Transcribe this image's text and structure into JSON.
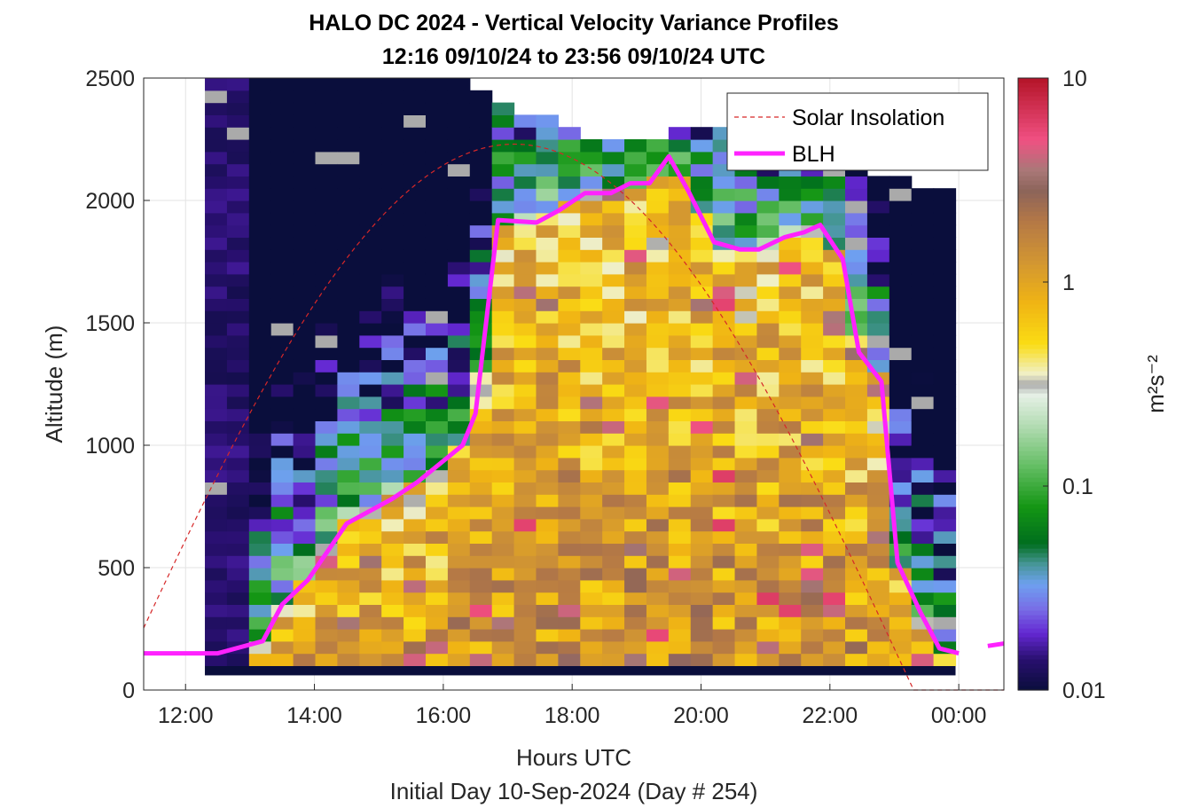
{
  "chart_data": {
    "type": "heatmap",
    "title_line1": "HALO DC 2024 - Vertical Velocity Variance Profiles",
    "title_line2": "12:16 09/10/24 to 23:56 09/10/24  UTC",
    "xlabel": "Hours UTC",
    "subtitle": "Initial Day 10-Sep-2024 (Day # 254)",
    "ylabel": "Altitude (m)",
    "x_ticks": [
      "12:00",
      "14:00",
      "16:00",
      "18:00",
      "20:00",
      "22:00",
      "00:00"
    ],
    "x_tick_hours": [
      12,
      14,
      16,
      18,
      20,
      22,
      24
    ],
    "xlim_hours": [
      11.35,
      24.7
    ],
    "y_ticks": [
      "0",
      "500",
      "1000",
      "1500",
      "2000",
      "2500"
    ],
    "y_tick_values": [
      0,
      500,
      1000,
      1500,
      2000,
      2500
    ],
    "ylim": [
      0,
      2500
    ],
    "colorbar": {
      "label": "m²s⁻²",
      "scale": "log",
      "range": [
        0.01,
        10
      ],
      "ticks": [
        "0.01",
        "0.1",
        "1",
        "10"
      ],
      "tick_values": [
        0.01,
        0.1,
        1,
        10
      ]
    },
    "legend": {
      "placement": "top-right",
      "entries": [
        {
          "label": "Solar Insolation",
          "style": "dashed",
          "color": "#d62728"
        },
        {
          "label": "BLH",
          "style": "solid",
          "color": "#ff22ff"
        }
      ]
    },
    "grid": true,
    "heatmap": {
      "x_start_hour": 12.3,
      "x_end_hour": 23.95,
      "bins": 34,
      "altitude_bottom_m": 100,
      "altitude_step_m": 50,
      "top_altitude_m": [
        2500,
        2500,
        2500,
        2500,
        2500,
        2500,
        2500,
        2500,
        2500,
        2500,
        2500,
        2500,
        2450,
        2400,
        2350,
        2350,
        2300,
        2250,
        2250,
        2250,
        2250,
        2300,
        2300,
        2300,
        2250,
        2200,
        2150,
        2150,
        2150,
        2150,
        2100,
        2100,
        2050,
        2050
      ],
      "variance_note": "log10 of vertical velocity variance (m2 s-2) per time bin and altitude level"
    },
    "series": [
      {
        "name": "BLH",
        "x_hours": [
          11.35,
          12.5,
          13.2,
          13.5,
          13.9,
          14.5,
          15.2,
          15.6,
          16.3,
          16.5,
          16.85,
          17.45,
          17.8,
          18.2,
          18.6,
          18.9,
          19.2,
          19.5,
          19.8,
          20.2,
          20.6,
          20.9,
          21.3,
          21.6,
          21.85,
          22.2,
          22.45,
          22.8,
          23.05,
          23.4,
          23.7,
          24.0
        ],
        "values": [
          150,
          150,
          200,
          350,
          450,
          680,
          780,
          850,
          1000,
          1130,
          1920,
          1910,
          1960,
          2030,
          2030,
          2070,
          2070,
          2180,
          2040,
          1830,
          1800,
          1800,
          1850,
          1870,
          1900,
          1760,
          1380,
          1260,
          520,
          320,
          170,
          150
        ]
      },
      {
        "name": "BLH (segment after gap)",
        "x_hours": [
          24.45,
          24.7
        ],
        "values": [
          180,
          190
        ]
      },
      {
        "name": "Solar Insolation",
        "peak_hour": 17.1,
        "sunset_hour": 23.3,
        "y_peak": 2230
      }
    ]
  }
}
